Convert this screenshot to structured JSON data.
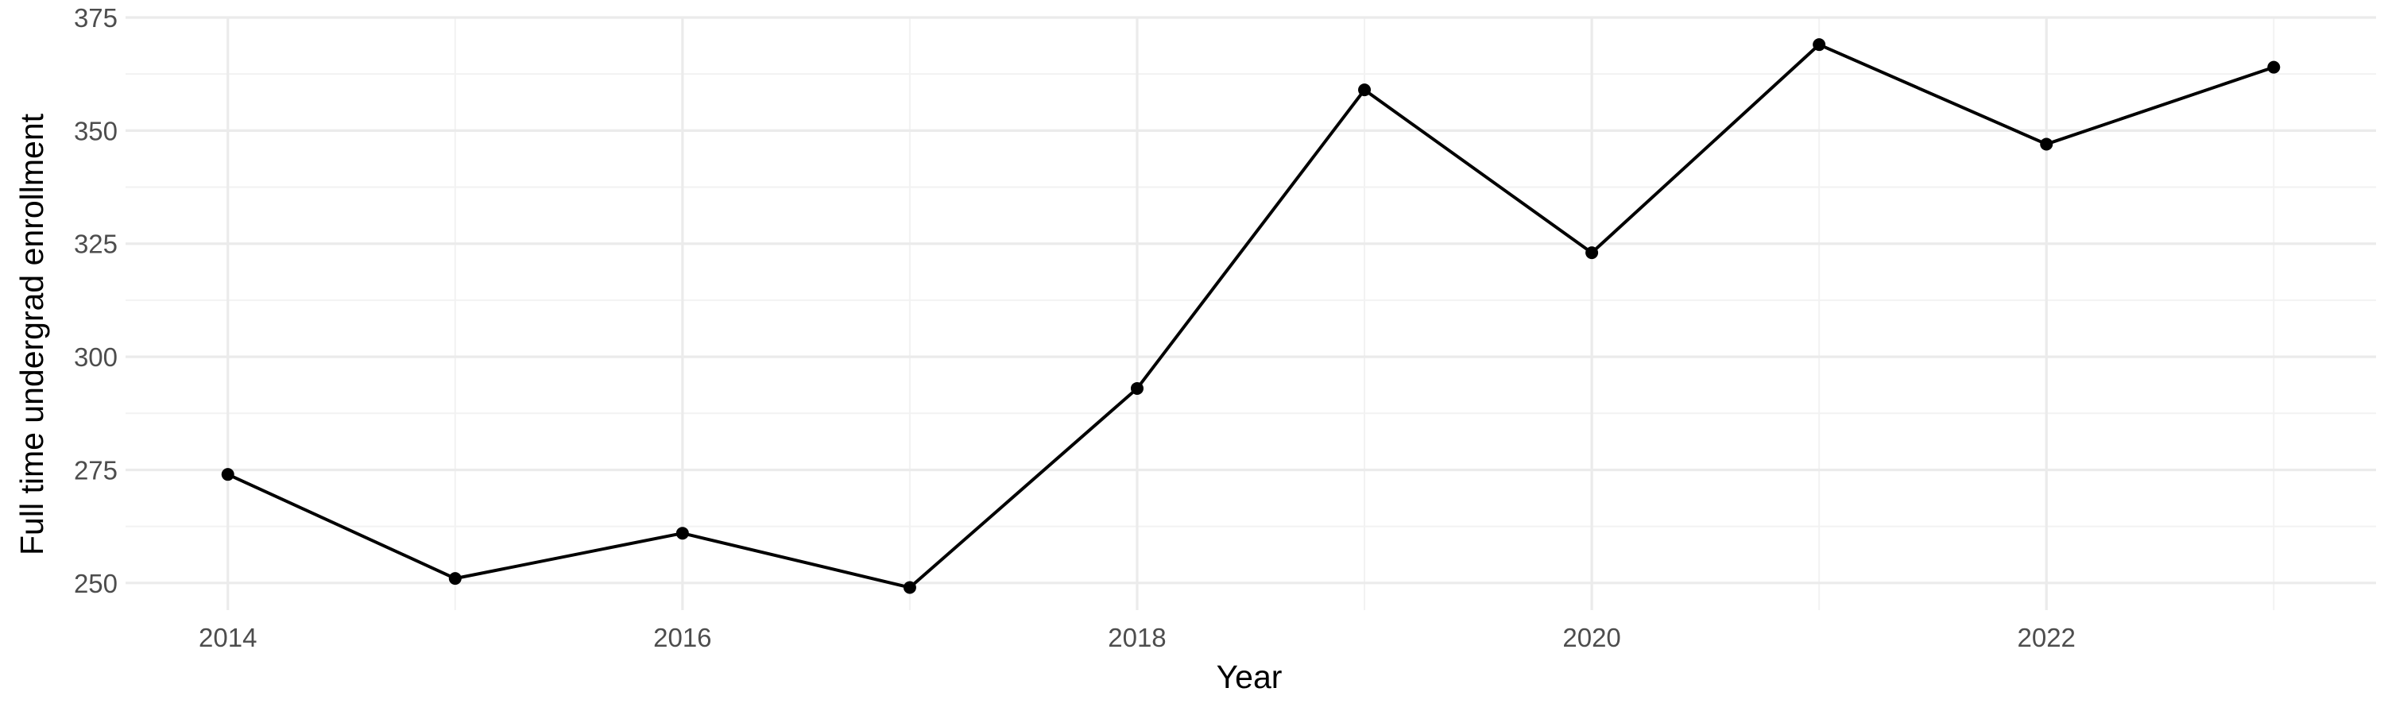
{
  "chart_data": {
    "type": "line",
    "title": "",
    "xlabel": "Year",
    "ylabel": "Full time undergrad enrollment",
    "x": [
      2014,
      2015,
      2016,
      2017,
      2018,
      2019,
      2020,
      2021,
      2022,
      2023
    ],
    "series": [
      {
        "values": [
          274,
          251,
          261,
          249,
          293,
          359,
          323,
          369,
          347,
          364
        ],
        "color": "#000000"
      }
    ],
    "xlim": [
      2013.55,
      2023.45
    ],
    "ylim": [
      244,
      375
    ],
    "x_ticks": [
      2014,
      2016,
      2018,
      2020,
      2022
    ],
    "x_tick_labels": [
      "2014",
      "2016",
      "2018",
      "2020",
      "2022"
    ],
    "y_ticks": [
      250,
      275,
      300,
      325,
      350,
      375
    ],
    "y_tick_labels": [
      "250",
      "275",
      "300",
      "325",
      "350",
      "375"
    ],
    "grid": true,
    "legend": "none"
  }
}
